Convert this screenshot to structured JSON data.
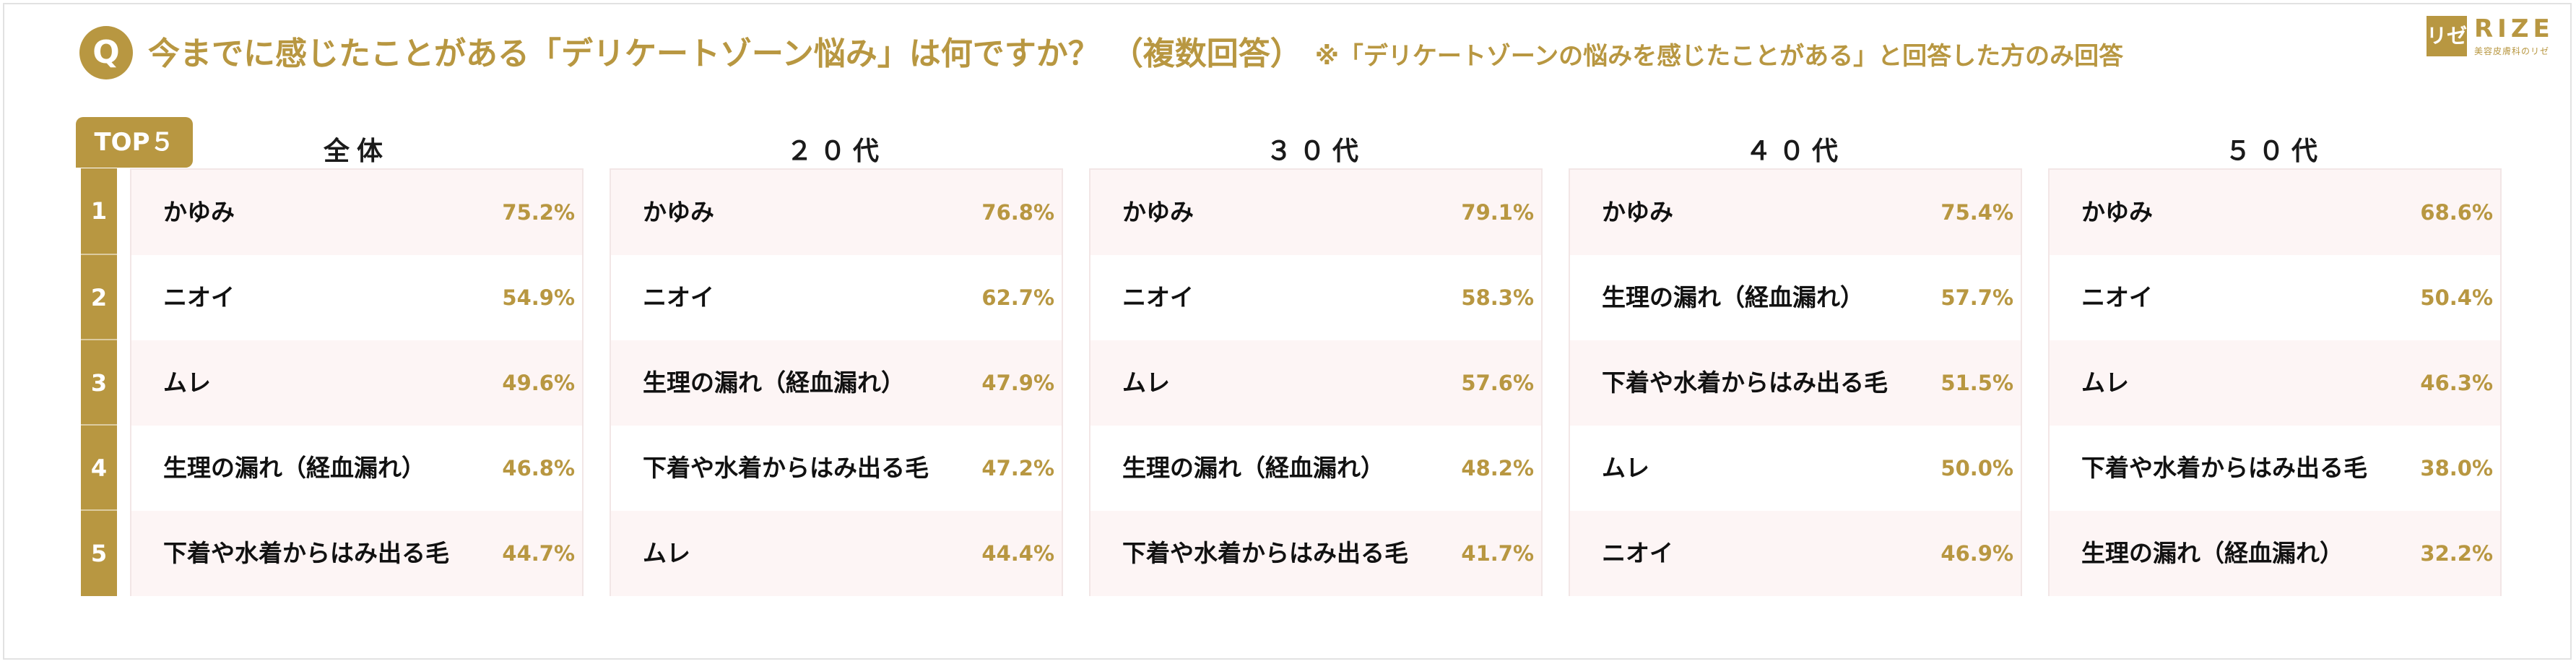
{
  "header": {
    "q_badge": "Q",
    "question": "今までに感じたことがある「デリケートゾーン悩み」は何ですか？",
    "multi": "（複数回答）",
    "note": "※「デリケートゾーンの悩みを感じたことがある」と回答した方のみ回答"
  },
  "logo": {
    "mark": "リゼ",
    "text": "RIZE",
    "sub": "美容皮膚科のリゼ"
  },
  "colors": {
    "accent": "#b89741",
    "row_pink": "#fdf5f5",
    "text": "#111111"
  },
  "chart_data": {
    "type": "table",
    "top_label": "TOP５",
    "ranks": [
      "1",
      "2",
      "3",
      "4",
      "5"
    ],
    "groups": [
      {
        "name": "全体",
        "items": [
          {
            "label": "かゆみ",
            "value": "75.2%"
          },
          {
            "label": "ニオイ",
            "value": "54.9%"
          },
          {
            "label": "ムレ",
            "value": "49.6%"
          },
          {
            "label": "生理の漏れ（経血漏れ）",
            "value": "46.8%"
          },
          {
            "label": "下着や水着からはみ出る毛",
            "value": "44.7%"
          }
        ]
      },
      {
        "name": "２０代",
        "items": [
          {
            "label": "かゆみ",
            "value": "76.8%"
          },
          {
            "label": "ニオイ",
            "value": "62.7%"
          },
          {
            "label": "生理の漏れ（経血漏れ）",
            "value": "47.9%"
          },
          {
            "label": "下着や水着からはみ出る毛",
            "value": "47.2%"
          },
          {
            "label": "ムレ",
            "value": "44.4%"
          }
        ]
      },
      {
        "name": "３０代",
        "items": [
          {
            "label": "かゆみ",
            "value": "79.1%"
          },
          {
            "label": "ニオイ",
            "value": "58.3%"
          },
          {
            "label": "ムレ",
            "value": "57.6%"
          },
          {
            "label": "生理の漏れ（経血漏れ）",
            "value": "48.2%"
          },
          {
            "label": "下着や水着からはみ出る毛",
            "value": "41.7%"
          }
        ]
      },
      {
        "name": "４０代",
        "items": [
          {
            "label": "かゆみ",
            "value": "75.4%"
          },
          {
            "label": "生理の漏れ（経血漏れ）",
            "value": "57.7%"
          },
          {
            "label": "下着や水着からはみ出る毛",
            "value": "51.5%"
          },
          {
            "label": "ムレ",
            "value": "50.0%"
          },
          {
            "label": "ニオイ",
            "value": "46.9%"
          }
        ]
      },
      {
        "name": "５０代",
        "items": [
          {
            "label": "かゆみ",
            "value": "68.6%"
          },
          {
            "label": "ニオイ",
            "value": "50.4%"
          },
          {
            "label": "ムレ",
            "value": "46.3%"
          },
          {
            "label": "下着や水着からはみ出る毛",
            "value": "38.0%"
          },
          {
            "label": "生理の漏れ（経血漏れ）",
            "value": "32.2%"
          }
        ]
      }
    ]
  }
}
